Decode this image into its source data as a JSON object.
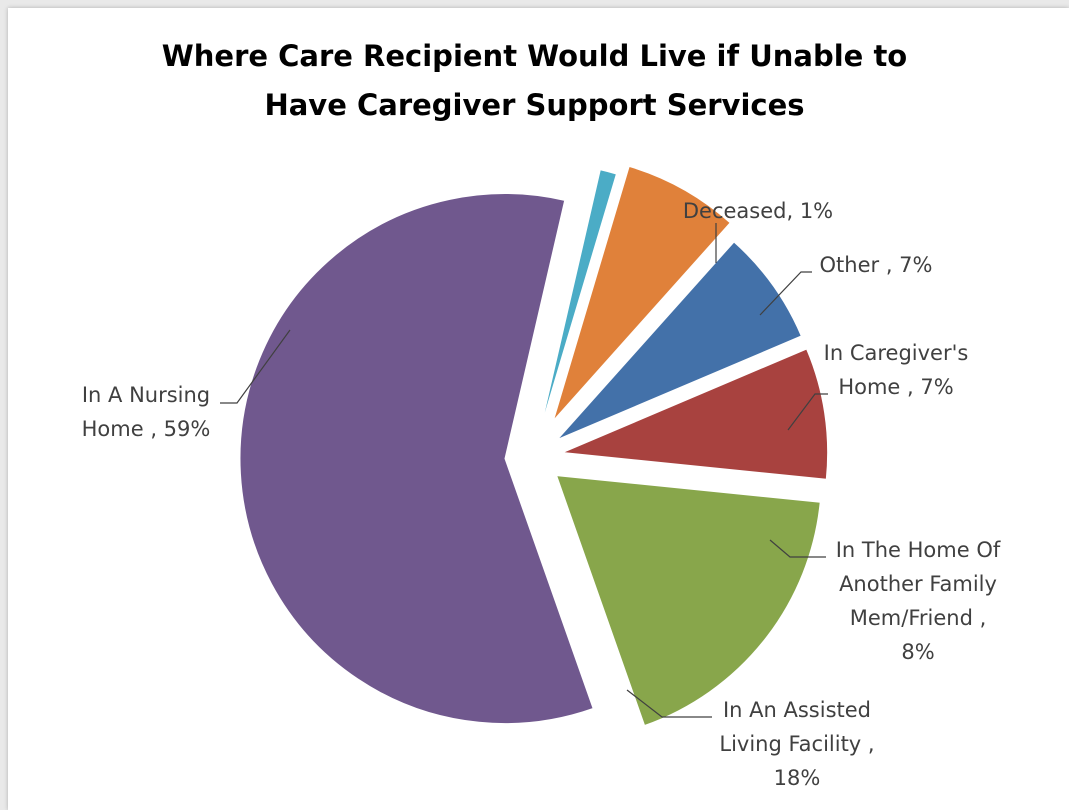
{
  "chart_data": {
    "type": "pie",
    "title_lines": [
      "Where Care Recipient Would Live if Unable to",
      "Have Caregiver Support Services"
    ],
    "slices": [
      {
        "name": "Deceased",
        "value": 1,
        "color": "#4BACC6",
        "label_lines": [
          "Deceased, 1%"
        ]
      },
      {
        "name": "Other",
        "value": 7,
        "color": "#E0813A",
        "label_lines": [
          "Other , 7%"
        ]
      },
      {
        "name": "In Caregiver's Home",
        "value": 7,
        "color": "#4371A9",
        "label_lines": [
          "In Caregiver's",
          "Home , 7%"
        ]
      },
      {
        "name": "In The Home Of Another Family Mem/Friend",
        "value": 8,
        "color": "#A8423F",
        "label_lines": [
          "In The Home Of",
          "Another Family",
          "Mem/Friend ,",
          "8%"
        ]
      },
      {
        "name": "In An Assisted Living Facility",
        "value": 18,
        "color": "#88A64B",
        "label_lines": [
          "In An Assisted",
          "Living Facility ,",
          "18%"
        ]
      },
      {
        "name": "In A Nursing Home",
        "value": 59,
        "color": "#70588E",
        "label_lines": [
          "In A Nursing",
          "Home , 59%"
        ]
      }
    ],
    "legend": "none",
    "exploded": true
  }
}
